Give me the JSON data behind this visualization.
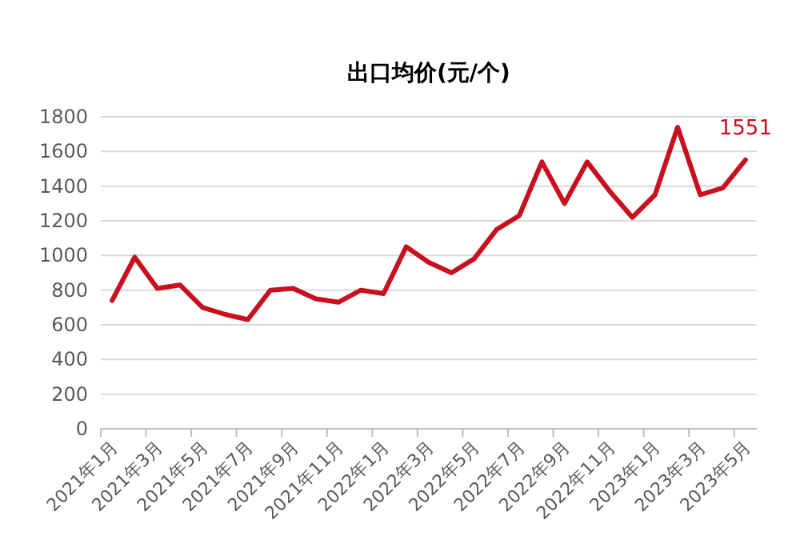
{
  "chart_data": {
    "type": "line",
    "title": "出口均价(元/个)",
    "categories": [
      "2021年1月",
      null,
      "2021年3月",
      null,
      "2021年5月",
      null,
      "2021年7月",
      null,
      "2021年9月",
      null,
      "2021年11月",
      null,
      "2022年1月",
      null,
      "2022年3月",
      null,
      "2022年5月",
      null,
      "2022年7月",
      null,
      "2022年9月",
      null,
      "2022年11月",
      null,
      "2023年1月",
      null,
      "2023年3月",
      null,
      "2023年5月"
    ],
    "series": [
      {
        "color": "#c8101e",
        "values": [
          740,
          990,
          810,
          830,
          700,
          660,
          630,
          800,
          810,
          750,
          730,
          800,
          780,
          1050,
          960,
          900,
          980,
          1150,
          1230,
          1540,
          1300,
          1540,
          1370,
          1220,
          1350,
          1740,
          1350,
          1390,
          1551
        ],
        "value_labels": [
          null,
          null,
          null,
          null,
          null,
          null,
          null,
          null,
          null,
          null,
          null,
          null,
          null,
          null,
          null,
          null,
          null,
          null,
          null,
          null,
          null,
          null,
          null,
          null,
          null,
          null,
          null,
          null,
          "1551"
        ]
      }
    ],
    "ylim": [
      0,
      1800
    ],
    "yticks": [
      0,
      200,
      400,
      600,
      800,
      1000,
      1200,
      1400,
      1600,
      1800
    ],
    "grid": "y",
    "marker": "none",
    "line_style": "solid"
  }
}
